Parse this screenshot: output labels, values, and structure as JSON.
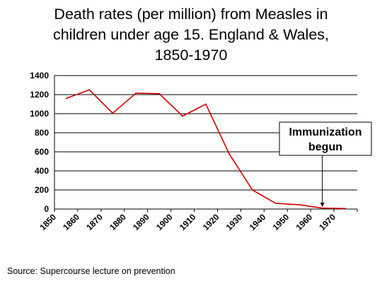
{
  "title_lines": [
    "Death rates (per million) from Measles in",
    "children under age 15. England & Wales,",
    "1850-1970"
  ],
  "source": "Source: Supercourse lecture on prevention",
  "colors": {
    "line": "#cc0000",
    "grid": "#000000",
    "text": "#000000"
  },
  "chart_data": {
    "type": "line",
    "title": "Death rates (per million) from Measles in children under age 15. England & Wales, 1850-1970",
    "categories": [
      "1850",
      "1860",
      "1870",
      "1880",
      "1890",
      "1900",
      "1910",
      "1920",
      "1930",
      "1940",
      "1950",
      "1960",
      "1970"
    ],
    "x": [
      1855,
      1865,
      1875,
      1885,
      1895,
      1905,
      1915,
      1925,
      1935,
      1945,
      1955,
      1965,
      1975
    ],
    "values": [
      1160,
      1250,
      1005,
      1215,
      1210,
      975,
      1100,
      580,
      200,
      60,
      45,
      10,
      5
    ],
    "ylim": [
      0,
      1400
    ],
    "yticks": [
      0,
      200,
      400,
      600,
      800,
      1000,
      1200,
      1400
    ],
    "grid": true,
    "annotation": {
      "lines": [
        "Immunization",
        "begun"
      ],
      "x": 1965
    }
  }
}
